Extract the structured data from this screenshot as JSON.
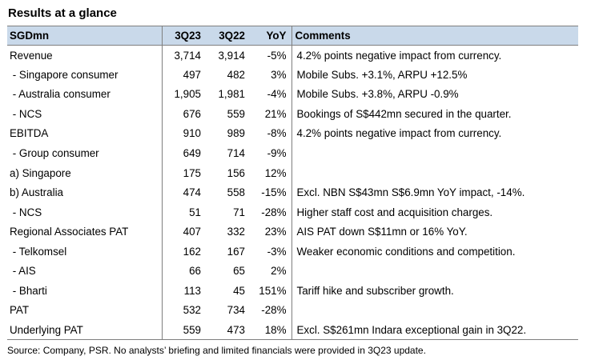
{
  "title": "Results at a glance",
  "table": {
    "headers": [
      "SGDmn",
      "3Q23",
      "3Q22",
      "YoY",
      "Comments"
    ],
    "rows": [
      {
        "label": "Revenue",
        "q23": "3,714",
        "q22": "3,914",
        "yoy": "-5%",
        "comment": "4.2% points negative impact from currency."
      },
      {
        "label": " - Singapore consumer",
        "q23": "497",
        "q22": "482",
        "yoy": "3%",
        "comment": "Mobile Subs. +3.1%, ARPU +12.5%"
      },
      {
        "label": " - Australia consumer",
        "q23": "1,905",
        "q22": "1,981",
        "yoy": "-4%",
        "comment": "Mobile Subs. +3.8%, ARPU -0.9%"
      },
      {
        "label": " - NCS",
        "q23": "676",
        "q22": "559",
        "yoy": "21%",
        "comment": "Bookings of S$442mn secured in the quarter."
      },
      {
        "label": "EBITDA",
        "q23": "910",
        "q22": "989",
        "yoy": "-8%",
        "comment": "4.2% points negative impact from currency."
      },
      {
        "label": " - Group consumer",
        "q23": "649",
        "q22": "714",
        "yoy": "-9%",
        "comment": ""
      },
      {
        "label": "a) Singapore",
        "q23": "175",
        "q22": "156",
        "yoy": "12%",
        "comment": ""
      },
      {
        "label": "b) Australia",
        "q23": "474",
        "q22": "558",
        "yoy": "-15%",
        "comment": "Excl. NBN S$43mn S$6.9mn YoY impact, -14%."
      },
      {
        "label": " - NCS",
        "q23": "51",
        "q22": "71",
        "yoy": "-28%",
        "comment": "Higher staff cost and acquisition charges."
      },
      {
        "label": "Regional Associates PAT",
        "q23": "407",
        "q22": "332",
        "yoy": "23%",
        "comment": "AIS PAT down S$11mn or 16% YoY."
      },
      {
        "label": " - Telkomsel",
        "q23": "162",
        "q22": "167",
        "yoy": "-3%",
        "comment": "Weaker economic conditions and competition."
      },
      {
        "label": " - AIS",
        "q23": "66",
        "q22": "65",
        "yoy": "2%",
        "comment": ""
      },
      {
        "label": " - Bharti",
        "q23": "113",
        "q22": "45",
        "yoy": "151%",
        "comment": "Tariff hike and subscriber growth."
      },
      {
        "label": "PAT",
        "q23": "532",
        "q22": "734",
        "yoy": "-28%",
        "comment": ""
      },
      {
        "label": "Underlying PAT",
        "q23": "559",
        "q22": "473",
        "yoy": "18%",
        "comment": "Excl. S$261mn Indara exceptional gain in 3Q22."
      }
    ]
  },
  "source": "Source: Company, PSR. No analysts’ briefing and limited financials were provided in 3Q23 update.",
  "colors": {
    "header_bg": "#c9d9ea",
    "border": "#7f7f7f"
  }
}
